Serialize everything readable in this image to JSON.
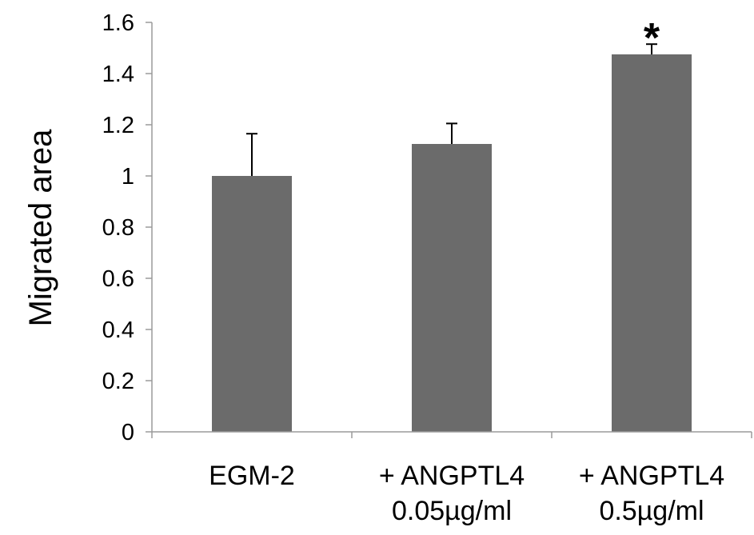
{
  "chart_data": {
    "type": "bar",
    "categories": [
      [
        "EGM-2"
      ],
      [
        "+ ANGPTL4",
        "0.05µg/ml"
      ],
      [
        "+ ANGPTL4",
        "0.5µg/ml"
      ]
    ],
    "values": [
      1.0,
      1.125,
      1.475
    ],
    "error_plus": [
      0.165,
      0.08,
      0.04
    ],
    "annotations": [
      "",
      "",
      "*"
    ],
    "ylabel": "Migrated area",
    "xlabel": "",
    "ylim": [
      0,
      1.6
    ],
    "yticks": [
      0,
      0.2,
      0.4,
      0.6,
      0.8,
      1,
      1.2,
      1.4,
      1.6
    ],
    "ytick_labels": [
      "0",
      "0.2",
      "0.4",
      "0.6",
      "0.8",
      "1",
      "1.2",
      "1.4",
      "1.6"
    ],
    "grid": false,
    "colors": {
      "bar": "#6b6b6b",
      "axis": "#9a9a9a",
      "error": "#000000"
    }
  }
}
